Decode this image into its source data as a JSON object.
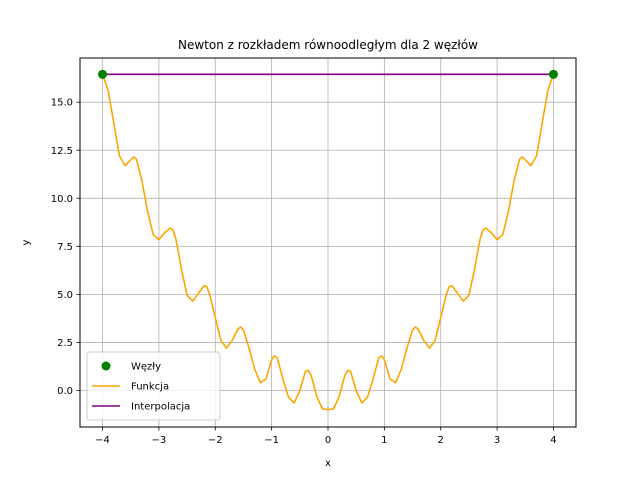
{
  "chart_data": {
    "type": "line",
    "title": "Newton z rozkładem równoodległym dla 2 węzłów",
    "xlabel": "x",
    "ylabel": "y",
    "xlim": [
      -4.4,
      4.4
    ],
    "ylim": [
      -1.9,
      17.3
    ],
    "xticks": [
      -4,
      -3,
      -2,
      -1,
      0,
      1,
      2,
      3,
      4
    ],
    "xtick_labels": [
      "−4",
      "−3",
      "−2",
      "−1",
      "0",
      "1",
      "2",
      "3",
      "4"
    ],
    "yticks": [
      0,
      2.5,
      5,
      7.5,
      10,
      12.5,
      15
    ],
    "ytick_labels": [
      "0.0",
      "2.5",
      "5.0",
      "7.5",
      "10.0",
      "12.5",
      "15.0"
    ],
    "grid": true,
    "legend_position": "lower-left",
    "series": [
      {
        "name": "Węzły",
        "kind": "scatter",
        "color": "#008000",
        "x": [
          -4,
          4
        ],
        "y": [
          16.45,
          16.45
        ]
      },
      {
        "name": "Funkcja",
        "kind": "line",
        "color": "#FFA500",
        "x": [
          -4.0,
          -3.9,
          -3.8,
          -3.7,
          -3.6,
          -3.5,
          -3.45,
          -3.4,
          -3.3,
          -3.2,
          -3.1,
          -3.0,
          -2.9,
          -2.8,
          -2.75,
          -2.7,
          -2.6,
          -2.5,
          -2.4,
          -2.3,
          -2.2,
          -2.15,
          -2.1,
          -2.0,
          -1.9,
          -1.8,
          -1.7,
          -1.6,
          -1.55,
          -1.5,
          -1.4,
          -1.3,
          -1.2,
          -1.1,
          -1.0,
          -0.95,
          -0.9,
          -0.8,
          -0.7,
          -0.6,
          -0.5,
          -0.4,
          -0.35,
          -0.3,
          -0.2,
          -0.1,
          0.0,
          0.1,
          0.2,
          0.3,
          0.35,
          0.4,
          0.5,
          0.6,
          0.7,
          0.8,
          0.9,
          0.95,
          1.0,
          1.1,
          1.2,
          1.3,
          1.4,
          1.5,
          1.55,
          1.6,
          1.7,
          1.8,
          1.9,
          2.0,
          2.1,
          2.15,
          2.2,
          2.3,
          2.4,
          2.5,
          2.6,
          2.7,
          2.75,
          2.8,
          2.9,
          3.0,
          3.1,
          3.2,
          3.3,
          3.4,
          3.45,
          3.5,
          3.6,
          3.7,
          3.8,
          3.9,
          4.0
        ],
        "y": [
          16.45,
          15.6,
          13.9,
          12.2,
          11.7,
          12.0,
          12.15,
          12.05,
          10.9,
          9.3,
          8.1,
          7.85,
          8.2,
          8.45,
          8.35,
          7.9,
          6.3,
          4.95,
          4.65,
          5.05,
          5.45,
          5.4,
          5.0,
          3.8,
          2.6,
          2.2,
          2.6,
          3.2,
          3.3,
          3.15,
          2.2,
          1.1,
          0.4,
          0.6,
          1.6,
          1.8,
          1.7,
          0.6,
          -0.35,
          -0.65,
          0.0,
          1.0,
          1.05,
          0.8,
          -0.3,
          -0.95,
          -1.0,
          -0.95,
          -0.3,
          0.8,
          1.05,
          1.0,
          0.0,
          -0.65,
          -0.35,
          0.6,
          1.7,
          1.8,
          1.6,
          0.6,
          0.4,
          1.1,
          2.2,
          3.15,
          3.3,
          3.2,
          2.6,
          2.2,
          2.6,
          3.8,
          5.0,
          5.4,
          5.45,
          5.05,
          4.65,
          4.95,
          6.3,
          7.9,
          8.35,
          8.45,
          8.2,
          7.85,
          8.1,
          9.3,
          10.9,
          12.05,
          12.15,
          12.0,
          11.7,
          12.2,
          13.9,
          15.6,
          16.45
        ]
      },
      {
        "name": "Interpolacja",
        "kind": "line",
        "color": "#800080",
        "x": [
          -4,
          4
        ],
        "y": [
          16.45,
          16.45
        ]
      }
    ]
  }
}
